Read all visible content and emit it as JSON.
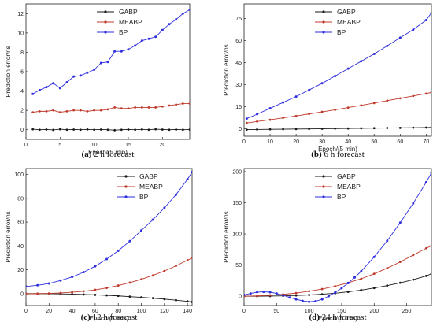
{
  "colors": {
    "GABP": "#1a1a1a",
    "MEABP": "#c0392b",
    "BP": "#2f2fe0"
  },
  "chart_data": [
    {
      "type": "line",
      "caption_label": "(a)",
      "caption_text": "2 h forecast",
      "xlabel": "Epoch/(5 min)",
      "ylabel": "Prediction error/ns",
      "xlim": [
        0,
        24
      ],
      "ylim": [
        -1,
        13
      ],
      "xticks": [
        0,
        5,
        10,
        15,
        20
      ],
      "yticks": [
        0,
        2,
        4,
        6,
        8,
        10,
        12
      ],
      "legend_position": "top-left",
      "series": [
        {
          "name": "GABP",
          "x": [
            1,
            2,
            3,
            4,
            5,
            6,
            7,
            8,
            9,
            10,
            11,
            12,
            13,
            14,
            15,
            16,
            17,
            18,
            19,
            20,
            21,
            22,
            23,
            24
          ],
          "values": [
            0.05,
            0.0,
            0.02,
            -0.02,
            0.05,
            0.0,
            0.02,
            0.0,
            0.03,
            0.0,
            0.02,
            0.0,
            -0.05,
            0.0,
            0.02,
            0.0,
            0.03,
            0.0,
            0.05,
            0.02,
            0.0,
            0.02,
            0.0,
            0.02
          ]
        },
        {
          "name": "MEABP",
          "x": [
            1,
            2,
            3,
            4,
            5,
            6,
            7,
            8,
            9,
            10,
            11,
            12,
            13,
            14,
            15,
            16,
            17,
            18,
            19,
            20,
            21,
            22,
            23,
            24
          ],
          "values": [
            1.8,
            1.9,
            1.9,
            2.0,
            1.8,
            1.9,
            2.0,
            2.0,
            1.9,
            2.0,
            2.0,
            2.1,
            2.3,
            2.2,
            2.2,
            2.3,
            2.3,
            2.3,
            2.3,
            2.4,
            2.5,
            2.6,
            2.7,
            2.7
          ]
        },
        {
          "name": "BP",
          "x": [
            1,
            2,
            3,
            4,
            5,
            6,
            7,
            8,
            9,
            10,
            11,
            12,
            13,
            14,
            15,
            16,
            17,
            18,
            19,
            20,
            21,
            22,
            23,
            24
          ],
          "values": [
            3.7,
            4.1,
            4.4,
            4.8,
            4.3,
            4.9,
            5.5,
            5.6,
            5.9,
            6.2,
            6.9,
            7.0,
            8.1,
            8.1,
            8.3,
            8.7,
            9.2,
            9.4,
            9.6,
            10.3,
            10.9,
            11.4,
            12.0,
            12.4
          ]
        }
      ]
    },
    {
      "type": "line",
      "caption_label": "(b)",
      "caption_text": "6 h forecast",
      "xlabel": "Epoch/(5 min)",
      "ylabel": "Prediction error/ns",
      "xlim": [
        0,
        72
      ],
      "ylim": [
        -5,
        85
      ],
      "xticks": [
        0,
        10,
        20,
        30,
        40,
        50,
        60,
        70
      ],
      "yticks": [
        0,
        15,
        30,
        45,
        60,
        75
      ],
      "legend_position": "top-left",
      "series": [
        {
          "name": "GABP",
          "x": [
            1,
            5,
            10,
            15,
            20,
            25,
            30,
            35,
            40,
            45,
            50,
            55,
            60,
            65,
            70,
            72
          ],
          "values": [
            -0.5,
            -0.4,
            -0.3,
            -0.2,
            -0.1,
            0.0,
            0.1,
            0.2,
            0.3,
            0.4,
            0.5,
            0.6,
            0.7,
            0.8,
            0.9,
            1.0
          ]
        },
        {
          "name": "MEABP",
          "x": [
            1,
            5,
            10,
            15,
            20,
            25,
            30,
            35,
            40,
            45,
            50,
            55,
            60,
            65,
            70,
            72
          ],
          "values": [
            4.0,
            5.0,
            6.2,
            7.5,
            8.8,
            10.2,
            11.6,
            13.0,
            14.5,
            16.0,
            17.6,
            19.2,
            20.8,
            22.4,
            24.0,
            24.8
          ]
        },
        {
          "name": "BP",
          "x": [
            1,
            5,
            10,
            15,
            20,
            25,
            30,
            35,
            40,
            45,
            50,
            55,
            60,
            65,
            70,
            72
          ],
          "values": [
            7,
            10,
            14,
            18,
            22,
            26.5,
            31,
            36,
            41,
            46,
            51,
            56.5,
            62,
            67.5,
            74,
            79
          ]
        }
      ]
    },
    {
      "type": "line",
      "caption_label": "(c)",
      "caption_text": "12 h forecast",
      "xlabel": "Epoch/(5 min)",
      "ylabel": "Prediction error/ns",
      "xlim": [
        0,
        144
      ],
      "ylim": [
        -10,
        105
      ],
      "xticks": [
        0,
        20,
        40,
        60,
        80,
        100,
        120,
        140
      ],
      "yticks": [
        0,
        20,
        40,
        60,
        80,
        100
      ],
      "legend_position": "top-right",
      "series": [
        {
          "name": "GABP",
          "x": [
            0,
            10,
            20,
            30,
            40,
            50,
            60,
            70,
            80,
            90,
            100,
            110,
            120,
            130,
            140,
            144
          ],
          "values": [
            0,
            0,
            0,
            -0.2,
            -0.4,
            -0.7,
            -1.0,
            -1.4,
            -1.9,
            -2.5,
            -3.1,
            -3.8,
            -4.6,
            -5.5,
            -6.5,
            -7
          ]
        },
        {
          "name": "MEABP",
          "x": [
            0,
            10,
            20,
            30,
            40,
            50,
            60,
            70,
            80,
            90,
            100,
            110,
            120,
            130,
            140,
            144
          ],
          "values": [
            0,
            0,
            0.2,
            0.6,
            1.2,
            2.0,
            3.2,
            4.8,
            6.8,
            9.2,
            12.0,
            15.3,
            19.0,
            23.3,
            28.0,
            30
          ]
        },
        {
          "name": "BP",
          "x": [
            0,
            10,
            20,
            30,
            40,
            50,
            60,
            70,
            80,
            90,
            100,
            110,
            120,
            130,
            140,
            144
          ],
          "values": [
            6,
            7,
            8.5,
            11,
            14,
            18,
            23,
            29,
            36,
            44,
            53,
            62,
            72,
            83,
            96,
            102
          ]
        }
      ]
    },
    {
      "type": "line",
      "caption_label": "(d)",
      "caption_text": "24 h forecast",
      "xlabel": "Epoch/(5 min)",
      "ylabel": "Prediction error/ns",
      "xlim": [
        0,
        288
      ],
      "ylim": [
        -15,
        205
      ],
      "xticks": [
        0,
        50,
        100,
        150,
        200,
        250
      ],
      "yticks": [
        0,
        50,
        100,
        150,
        200
      ],
      "legend_position": "top-left",
      "series": [
        {
          "name": "GABP",
          "x": [
            0,
            20,
            40,
            60,
            80,
            100,
            120,
            140,
            160,
            180,
            200,
            220,
            240,
            260,
            280,
            288
          ],
          "values": [
            0,
            0,
            0.2,
            0.6,
            1.2,
            2.0,
            3.2,
            4.8,
            7.0,
            9.8,
            13.2,
            17.0,
            21.5,
            26.5,
            32.5,
            36
          ]
        },
        {
          "name": "MEABP",
          "x": [
            0,
            20,
            40,
            60,
            80,
            100,
            120,
            140,
            160,
            180,
            200,
            220,
            240,
            260,
            280,
            288
          ],
          "values": [
            0,
            0.5,
            1.5,
            3,
            5,
            8,
            11.5,
            16,
            21.5,
            28,
            36,
            45,
            55,
            66,
            77,
            81
          ]
        },
        {
          "name": "BP",
          "x": [
            0,
            10,
            20,
            30,
            40,
            50,
            60,
            70,
            80,
            90,
            100,
            110,
            120,
            130,
            140,
            150,
            160,
            170,
            180,
            200,
            220,
            240,
            260,
            280,
            288
          ],
          "values": [
            2,
            4.5,
            6.5,
            7,
            6.5,
            4.5,
            1.5,
            -2,
            -5,
            -7.5,
            -9,
            -8,
            -5,
            0,
            6,
            13,
            21,
            30,
            40,
            63,
            89,
            118,
            149,
            183,
            198
          ]
        }
      ]
    }
  ]
}
